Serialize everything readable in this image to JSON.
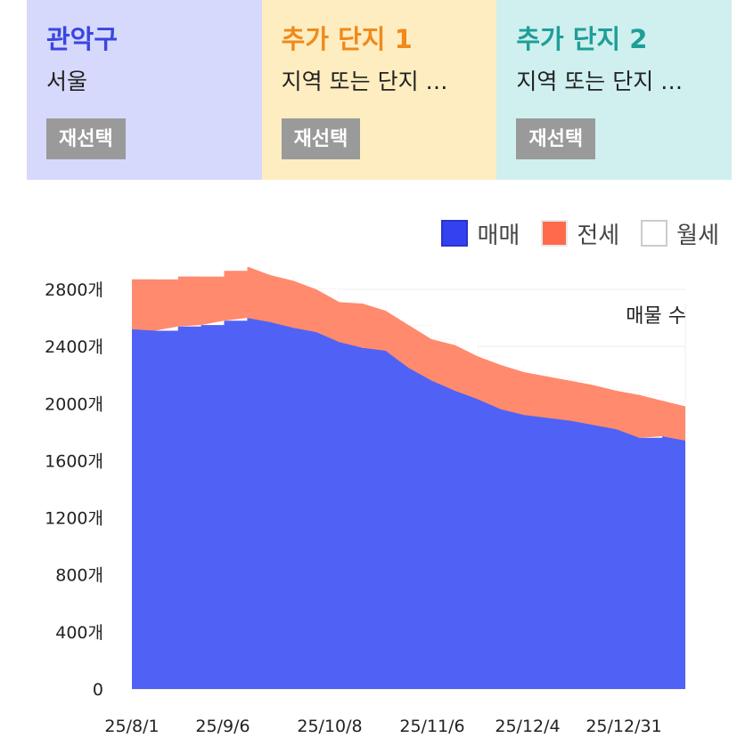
{
  "cards": [
    {
      "title": "관악구",
      "subtitle": "서울",
      "button": "재선택",
      "bg": "#d6d9fb",
      "color": "#3a46e0"
    },
    {
      "title": "추가 단지 1",
      "subtitle": "지역 또는 단지 …",
      "button": "재선택",
      "bg": "#feedc0",
      "color": "#f08a1c"
    },
    {
      "title": "추가 단지 2",
      "subtitle": "지역 또는 단지 …",
      "button": "재선택",
      "bg": "#cff0ee",
      "color": "#1f9e98"
    }
  ],
  "legend": [
    {
      "label": "매매",
      "color": "#3441f0",
      "border": "#2a35c8"
    },
    {
      "label": "전세",
      "color": "#ff6a4d",
      "border": "#e8e8e8"
    },
    {
      "label": "월세",
      "color": "#ffffff",
      "border": "#cccccc"
    }
  ],
  "chart_data": {
    "type": "area",
    "stacked": true,
    "title": "매물 수",
    "ylim": [
      0,
      2800
    ],
    "y_ticks": [
      0,
      400,
      800,
      1200,
      1600,
      2000,
      2400,
      2800
    ],
    "y_tick_labels": [
      "0",
      "400개",
      "800개",
      "1200개",
      "1600개",
      "2000개",
      "2400개",
      "2800개"
    ],
    "x_tick_labels": [
      "25/8/1",
      "25/9/6",
      "25/10/8",
      "25/11/6",
      "25/12/4",
      "25/12/31"
    ],
    "x": [
      "25/8/1",
      "25/8/8",
      "25/8/15",
      "25/8/22",
      "25/8/29",
      "25/9/6",
      "25/9/13",
      "25/9/20",
      "25/9/27",
      "25/10/1",
      "25/10/8",
      "25/10/15",
      "25/10/22",
      "25/10/29",
      "25/11/6",
      "25/11/13",
      "25/11/20",
      "25/11/27",
      "25/12/4",
      "25/12/11",
      "25/12/18",
      "25/12/25",
      "25/12/31",
      "26/1/7",
      "26/1/14"
    ],
    "series": [
      {
        "name": "매매",
        "color": "#5062f5",
        "values": [
          2520,
          2510,
          2540,
          2550,
          2580,
          2600,
          2570,
          2530,
          2500,
          2430,
          2390,
          2370,
          2250,
          2160,
          2090,
          2030,
          1960,
          1920,
          1900,
          1880,
          1850,
          1820,
          1760,
          1770,
          1740
        ]
      },
      {
        "name": "전세",
        "color": "#ff8a6e",
        "values": [
          350,
          360,
          350,
          340,
          350,
          360,
          330,
          330,
          300,
          280,
          310,
          280,
          300,
          290,
          320,
          300,
          310,
          300,
          290,
          280,
          280,
          270,
          300,
          250,
          240
        ]
      },
      {
        "name": "월세",
        "color": "#ffffff",
        "values": [
          0,
          0,
          0,
          0,
          0,
          0,
          0,
          0,
          0,
          0,
          0,
          0,
          0,
          0,
          0,
          0,
          0,
          0,
          0,
          0,
          0,
          0,
          0,
          0,
          0
        ]
      }
    ],
    "grid": true
  }
}
